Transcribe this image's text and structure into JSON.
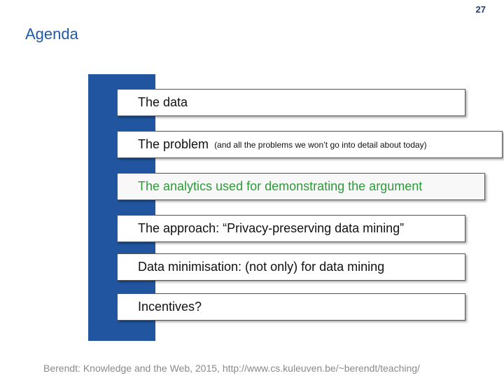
{
  "header": {
    "page_number": "27",
    "title": "Agenda"
  },
  "agenda": {
    "items": [
      {
        "text": "The data"
      },
      {
        "text": "The problem",
        "note": "(and all the problems we won’t go into detail about today)"
      },
      {
        "text": "The analytics used for demonstrating the argument",
        "highlighted": true
      },
      {
        "text": "The approach: “Privacy-preserving data mining”"
      },
      {
        "text": "Data minimisation: (not only) for data mining"
      },
      {
        "text": "Incentives?"
      }
    ]
  },
  "footer": {
    "text": "Berendt: Knowledge and the Web, 2015, http://www.cs.kuleuven.be/~berendt/teaching/"
  }
}
